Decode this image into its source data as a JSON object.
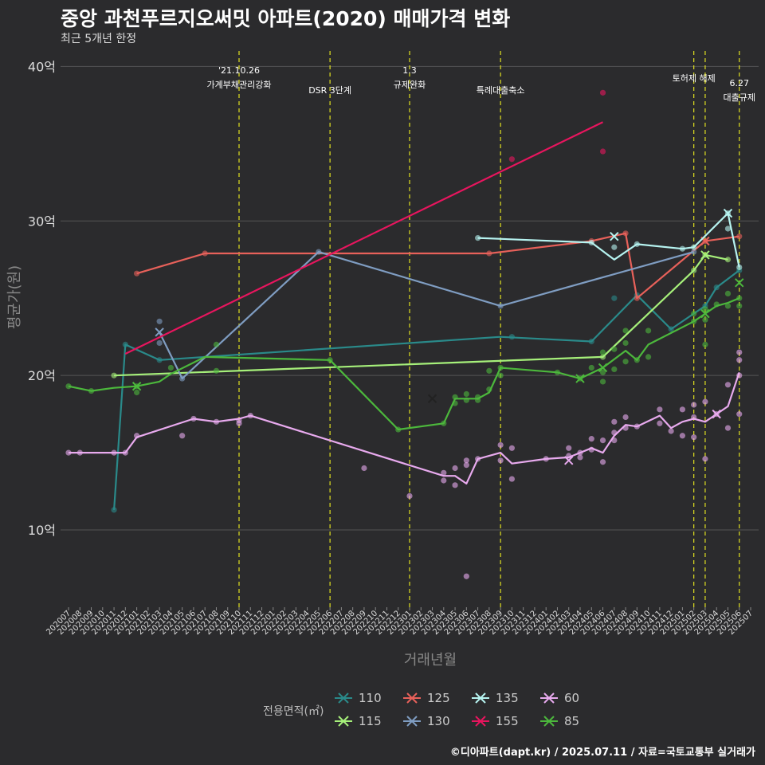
{
  "title": "중앙 과천푸르지오써밋 아파트(2020) 매매가격 변화",
  "subtitle": "최근 5개년 한정",
  "caption": "©디아파트(dapt.kr) / 2025.07.11 / 자료=국토교통부 실거래가",
  "legend_title": "전용면적(㎡)",
  "colors": {
    "110": "#2a8a8a",
    "115": "#a6f07a",
    "125": "#e8615a",
    "130": "#7f9dc2",
    "135": "#b6f3f0",
    "155": "#e8155e",
    "60": "#e8aaee",
    "85": "#4cb83c",
    "event_line": "#e0e020",
    "grid": "#555555",
    "background": "#2b2b2d"
  },
  "chart_data": {
    "type": "line",
    "title": "중앙 과천푸르지오써밋 아파트(2020) 매매가격 변화",
    "subtitle": "최근 5개년 한정",
    "xlabel": "거래년월",
    "ylabel": "평균가(원)",
    "ylim": [
      5,
      41
    ],
    "yticks": [
      10,
      20,
      30,
      40
    ],
    "ytick_labels": [
      "10억",
      "20억",
      "30억",
      "40억"
    ],
    "grid": true,
    "x_start": "202007",
    "x_end": "202507",
    "events": [
      {
        "date": "202110",
        "label1": "'21.10.26",
        "label2": "가계부채관리강화"
      },
      {
        "date": "202206",
        "label1": "",
        "label2": "DSR 3단계"
      },
      {
        "date": "202301",
        "label1": "1.3",
        "label2": "규제완화"
      },
      {
        "date": "202309",
        "label1": "",
        "label2": "특례대출축소"
      },
      {
        "date": "202502",
        "label1": "토허제 해제",
        "label2": ""
      },
      {
        "date": "202503",
        "label1": "",
        "label2": ""
      },
      {
        "date": "202506",
        "label1": "6.27",
        "label2": "대출규제"
      }
    ],
    "series": [
      {
        "name": "110",
        "marker": "x",
        "line": [
          [
            "202011",
            11.3
          ],
          [
            "202012",
            22.0
          ],
          [
            "202103",
            21.0
          ],
          [
            "202309",
            22.5
          ],
          [
            "202405",
            22.2
          ],
          [
            "202409",
            25.2
          ],
          [
            "202412",
            23.0
          ],
          [
            "202503",
            24.5
          ],
          [
            "202504",
            25.7
          ],
          [
            "202506",
            26.8
          ]
        ],
        "points": [
          [
            "202011",
            11.3
          ],
          [
            "202012",
            22.0
          ],
          [
            "202103",
            21.0
          ],
          [
            "202310",
            22.5
          ],
          [
            "202405",
            22.2
          ],
          [
            "202407",
            25.0
          ],
          [
            "202409",
            25.2
          ],
          [
            "202412",
            23.0
          ],
          [
            "202503",
            24.5
          ],
          [
            "202504",
            25.7
          ],
          [
            "202506",
            26.8
          ]
        ],
        "crosses": []
      },
      {
        "name": "115",
        "marker": "x",
        "line": [
          [
            "202011",
            20.0
          ],
          [
            "202406",
            21.2
          ],
          [
            "202502",
            26.8
          ],
          [
            "202503",
            27.8
          ],
          [
            "202505",
            27.5
          ]
        ],
        "points": [
          [
            "202011",
            20.0
          ],
          [
            "202406",
            21.2
          ],
          [
            "202502",
            26.8
          ],
          [
            "202503",
            27.8
          ],
          [
            "202505",
            27.5
          ]
        ],
        "crosses": [
          [
            "202503",
            27.8
          ]
        ]
      },
      {
        "name": "125",
        "marker": "x",
        "line": [
          [
            "202101",
            26.6
          ],
          [
            "202107",
            27.9
          ],
          [
            "202308",
            27.9
          ],
          [
            "202405",
            28.7
          ],
          [
            "202408",
            29.2
          ],
          [
            "202409",
            25.0
          ],
          [
            "202503",
            28.7
          ],
          [
            "202506",
            29.0
          ]
        ],
        "points": [
          [
            "202101",
            26.6
          ],
          [
            "202107",
            27.9
          ],
          [
            "202308",
            27.9
          ],
          [
            "202405",
            28.7
          ],
          [
            "202408",
            29.2
          ],
          [
            "202409",
            25.0
          ],
          [
            "202503",
            28.7
          ],
          [
            "202506",
            29.0
          ]
        ],
        "crosses": [
          [
            "202503",
            28.7
          ]
        ]
      },
      {
        "name": "130",
        "marker": "x",
        "line": [
          [
            "202103",
            22.8
          ],
          [
            "202105",
            19.8
          ],
          [
            "202205",
            28.0
          ],
          [
            "202309",
            24.5
          ],
          [
            "202502",
            28.0
          ]
        ],
        "points": [
          [
            "202103",
            23.5
          ],
          [
            "202103",
            22.1
          ],
          [
            "202105",
            19.8
          ],
          [
            "202205",
            28.0
          ],
          [
            "202309",
            24.5
          ],
          [
            "202502",
            28.0
          ]
        ],
        "crosses": [
          [
            "202103",
            22.8
          ]
        ]
      },
      {
        "name": "135",
        "marker": "x",
        "line": [
          [
            "202307",
            28.9
          ],
          [
            "202405",
            28.6
          ],
          [
            "202407",
            27.5
          ],
          [
            "202409",
            28.5
          ],
          [
            "202501",
            28.2
          ],
          [
            "202502",
            28.3
          ],
          [
            "202505",
            30.5
          ],
          [
            "202506",
            27.0
          ]
        ],
        "points": [
          [
            "202307",
            28.9
          ],
          [
            "202405",
            28.6
          ],
          [
            "202407",
            28.3
          ],
          [
            "202409",
            28.5
          ],
          [
            "202501",
            28.2
          ],
          [
            "202502",
            28.3
          ],
          [
            "202505",
            30.5
          ],
          [
            "202505",
            29.5
          ],
          [
            "202506",
            27.0
          ]
        ],
        "crosses": [
          [
            "202407",
            29.0
          ],
          [
            "202505",
            30.5
          ]
        ]
      },
      {
        "name": "155",
        "marker": "x",
        "line": [
          [
            "202012",
            21.4
          ],
          [
            "202406",
            36.4
          ]
        ],
        "points": [
          [
            "202310",
            34.0
          ],
          [
            "202406",
            38.3
          ],
          [
            "202406",
            34.5
          ]
        ],
        "crosses": []
      },
      {
        "name": "60",
        "marker": "x",
        "line": [
          [
            "202007",
            15.0
          ],
          [
            "202008",
            15.0
          ],
          [
            "202011",
            15.0
          ],
          [
            "202012",
            15.0
          ],
          [
            "202101",
            16.0
          ],
          [
            "202106",
            17.2
          ],
          [
            "202108",
            17.0
          ],
          [
            "202109",
            17.1
          ],
          [
            "202110",
            17.2
          ],
          [
            "202111",
            17.4
          ],
          [
            "202304",
            13.5
          ],
          [
            "202305",
            13.5
          ],
          [
            "202306",
            13.0
          ],
          [
            "202307",
            14.6
          ],
          [
            "202309",
            15.0
          ],
          [
            "202310",
            14.3
          ],
          [
            "202401",
            14.6
          ],
          [
            "202403",
            14.7
          ],
          [
            "202404",
            15.0
          ],
          [
            "202405",
            15.3
          ],
          [
            "202406",
            15.0
          ],
          [
            "202407",
            16.1
          ],
          [
            "202408",
            16.8
          ],
          [
            "202409",
            16.7
          ],
          [
            "202411",
            17.4
          ],
          [
            "202412",
            16.6
          ],
          [
            "202501",
            17.0
          ],
          [
            "202502",
            17.2
          ],
          [
            "202503",
            17.0
          ],
          [
            "202504",
            17.5
          ],
          [
            "202505",
            18.0
          ],
          [
            "202506",
            20.2
          ]
        ],
        "points": [
          [
            "202007",
            15.0
          ],
          [
            "202008",
            15.0
          ],
          [
            "202011",
            15.0
          ],
          [
            "202012",
            15.0
          ],
          [
            "202101",
            16.1
          ],
          [
            "202105",
            16.1
          ],
          [
            "202106",
            17.2
          ],
          [
            "202108",
            17.0
          ],
          [
            "202110",
            17.1
          ],
          [
            "202110",
            16.9
          ],
          [
            "202111",
            17.4
          ],
          [
            "202209",
            14.0
          ],
          [
            "202301",
            12.2
          ],
          [
            "202304",
            13.7
          ],
          [
            "202304",
            13.2
          ],
          [
            "202305",
            14.0
          ],
          [
            "202305",
            12.9
          ],
          [
            "202306",
            14.5
          ],
          [
            "202306",
            14.2
          ],
          [
            "202306",
            7.0
          ],
          [
            "202307",
            14.6
          ],
          [
            "202309",
            15.5
          ],
          [
            "202309",
            14.5
          ],
          [
            "202310",
            15.3
          ],
          [
            "202310",
            13.3
          ],
          [
            "202401",
            14.6
          ],
          [
            "202403",
            15.3
          ],
          [
            "202403",
            14.8
          ],
          [
            "202404",
            15.0
          ],
          [
            "202404",
            14.7
          ],
          [
            "202405",
            15.9
          ],
          [
            "202405",
            15.2
          ],
          [
            "202406",
            15.8
          ],
          [
            "202406",
            14.4
          ],
          [
            "202407",
            17.0
          ],
          [
            "202407",
            16.3
          ],
          [
            "202407",
            15.8
          ],
          [
            "202408",
            17.3
          ],
          [
            "202408",
            16.6
          ],
          [
            "202409",
            16.7
          ],
          [
            "202411",
            17.8
          ],
          [
            "202411",
            16.9
          ],
          [
            "202412",
            16.4
          ],
          [
            "202501",
            17.8
          ],
          [
            "202501",
            16.1
          ],
          [
            "202502",
            18.1
          ],
          [
            "202502",
            17.3
          ],
          [
            "202502",
            16.0
          ],
          [
            "202503",
            18.3
          ],
          [
            "202503",
            14.6
          ],
          [
            "202504",
            17.5
          ],
          [
            "202505",
            19.4
          ],
          [
            "202505",
            16.6
          ],
          [
            "202506",
            21.5
          ],
          [
            "202506",
            21.0
          ],
          [
            "202506",
            20.0
          ],
          [
            "202506",
            17.5
          ]
        ],
        "crosses": [
          [
            "202403",
            14.5
          ],
          [
            "202504",
            17.5
          ]
        ]
      },
      {
        "name": "85",
        "marker": "x",
        "line": [
          [
            "202007",
            19.3
          ],
          [
            "202009",
            19.0
          ],
          [
            "202011",
            19.2
          ],
          [
            "202101",
            19.3
          ],
          [
            "202103",
            19.6
          ],
          [
            "202104",
            20.1
          ],
          [
            "202107",
            21.2
          ],
          [
            "202206",
            21.0
          ],
          [
            "202212",
            16.5
          ],
          [
            "202304",
            16.9
          ],
          [
            "202305",
            18.5
          ],
          [
            "202306",
            18.5
          ],
          [
            "202307",
            18.5
          ],
          [
            "202308",
            18.9
          ],
          [
            "202309",
            20.5
          ],
          [
            "202402",
            20.2
          ],
          [
            "202404",
            19.8
          ],
          [
            "202406",
            20.5
          ],
          [
            "202408",
            21.6
          ],
          [
            "202409",
            21.0
          ],
          [
            "202410",
            22.0
          ],
          [
            "202502",
            23.5
          ],
          [
            "202503",
            24.0
          ],
          [
            "202504",
            24.5
          ],
          [
            "202505",
            24.7
          ],
          [
            "202506",
            25.0
          ]
        ],
        "points": [
          [
            "202007",
            19.3
          ],
          [
            "202009",
            19.0
          ],
          [
            "202101",
            19.3
          ],
          [
            "202101",
            18.9
          ],
          [
            "202104",
            20.5
          ],
          [
            "202108",
            22.0
          ],
          [
            "202108",
            20.3
          ],
          [
            "202206",
            21.0
          ],
          [
            "202212",
            16.5
          ],
          [
            "202304",
            16.9
          ],
          [
            "202305",
            18.6
          ],
          [
            "202305",
            18.2
          ],
          [
            "202306",
            18.8
          ],
          [
            "202306",
            18.4
          ],
          [
            "202307",
            18.6
          ],
          [
            "202307",
            18.4
          ],
          [
            "202308",
            20.3
          ],
          [
            "202308",
            19.1
          ],
          [
            "202309",
            20.5
          ],
          [
            "202309",
            20.0
          ],
          [
            "202402",
            20.2
          ],
          [
            "202404",
            19.8
          ],
          [
            "202405",
            20.5
          ],
          [
            "202406",
            21.5
          ],
          [
            "202406",
            20.2
          ],
          [
            "202406",
            19.6
          ],
          [
            "202407",
            21.7
          ],
          [
            "202407",
            20.4
          ],
          [
            "202408",
            22.9
          ],
          [
            "202408",
            22.1
          ],
          [
            "202408",
            20.9
          ],
          [
            "202409",
            21.0
          ],
          [
            "202410",
            22.9
          ],
          [
            "202410",
            21.2
          ],
          [
            "202502",
            24.0
          ],
          [
            "202502",
            23.5
          ],
          [
            "202503",
            24.3
          ],
          [
            "202503",
            23.6
          ],
          [
            "202503",
            22.0
          ],
          [
            "202504",
            24.6
          ],
          [
            "202505",
            25.3
          ],
          [
            "202505",
            24.5
          ],
          [
            "202506",
            25.0
          ],
          [
            "202506",
            24.5
          ]
        ],
        "crosses": [
          [
            "202101",
            19.3
          ],
          [
            "202303",
            18.5
          ],
          [
            "202404",
            19.8
          ],
          [
            "202406",
            20.5
          ],
          [
            "202503",
            24.0
          ],
          [
            "202506",
            26.0
          ]
        ]
      }
    ]
  }
}
